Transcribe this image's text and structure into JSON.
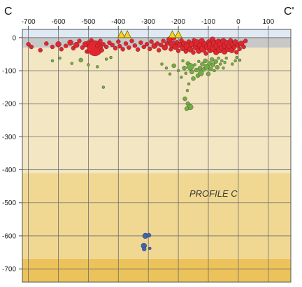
{
  "chart_data": {
    "type": "scatter",
    "section_label_left": "C",
    "section_label_right": "C'",
    "annotation": "PROFILE C",
    "xlim": [
      -720,
      175
    ],
    "ylim": [
      -740,
      25
    ],
    "x_ticks": [
      -700,
      -600,
      -500,
      -400,
      -300,
      -200,
      -100,
      0,
      100
    ],
    "x_tick_labels": [
      "-700",
      "-600",
      "-500",
      "-400",
      "-300",
      "-200",
      "-100",
      "0",
      "100"
    ],
    "y_ticks": [
      0,
      -100,
      -200,
      -300,
      -400,
      -500,
      -600,
      -700
    ],
    "y_tick_labels": [
      "0",
      "-100",
      "-200",
      "-300",
      "-400",
      "-500",
      "-600",
      "-700"
    ],
    "grid": true,
    "background_bands": [
      {
        "from": 25,
        "to": 0,
        "color": "#dfe9f4"
      },
      {
        "from": 0,
        "to": -30,
        "color": "#c8c8c8"
      },
      {
        "from": -30,
        "to": -410,
        "color": "#f3e6c3"
      },
      {
        "from": -410,
        "to": -670,
        "color": "#f0d892"
      },
      {
        "from": -670,
        "to": -740,
        "color": "#ecc35a"
      }
    ],
    "colors": {
      "shallow": "#e0262f",
      "intermediate": "#6fae44",
      "deep": "#3c66b4",
      "stations": "#f4d425",
      "grid": "#6e6e6e"
    },
    "stations": {
      "x": [
        -390,
        -370,
        -220,
        -200
      ]
    },
    "series": [
      {
        "key": "shallow",
        "points": [
          [
            -700,
            -20,
            3
          ],
          [
            -690,
            -28,
            3
          ],
          [
            -660,
            -38,
            3
          ],
          [
            -640,
            -18,
            3
          ],
          [
            -620,
            -28,
            3
          ],
          [
            -600,
            -20,
            4
          ],
          [
            -590,
            -35,
            3
          ],
          [
            -575,
            -25,
            3
          ],
          [
            -560,
            -15,
            4
          ],
          [
            -550,
            -32,
            3
          ],
          [
            -540,
            -22,
            4
          ],
          [
            -530,
            -10,
            3
          ],
          [
            -520,
            -30,
            3
          ],
          [
            -510,
            -20,
            4
          ],
          [
            -505,
            -42,
            3
          ],
          [
            -500,
            -15,
            3
          ],
          [
            -495,
            -28,
            4
          ],
          [
            -490,
            -8,
            3
          ],
          [
            -485,
            -35,
            3
          ],
          [
            -480,
            -18,
            3
          ],
          [
            -478,
            -32,
            11
          ],
          [
            -470,
            -25,
            3
          ],
          [
            -460,
            -10,
            3
          ],
          [
            -455,
            -38,
            3
          ],
          [
            -450,
            -20,
            3
          ],
          [
            -440,
            -28,
            3
          ],
          [
            -430,
            -15,
            3
          ],
          [
            -420,
            -22,
            3
          ],
          [
            -410,
            -32,
            3
          ],
          [
            -400,
            -12,
            3
          ],
          [
            -395,
            -26,
            3
          ],
          [
            -385,
            -35,
            3
          ],
          [
            -375,
            -18,
            3
          ],
          [
            -365,
            -30,
            3
          ],
          [
            -355,
            -10,
            3
          ],
          [
            -345,
            -24,
            3
          ],
          [
            -335,
            -36,
            3
          ],
          [
            -325,
            -15,
            3
          ],
          [
            -315,
            -28,
            3
          ],
          [
            -305,
            -20,
            3
          ],
          [
            -295,
            -34,
            3
          ],
          [
            -290,
            -12,
            3
          ],
          [
            -280,
            -25,
            4
          ],
          [
            -270,
            -18,
            3
          ],
          [
            -265,
            -38,
            3
          ],
          [
            -258,
            -22,
            3
          ],
          [
            -250,
            -10,
            3
          ],
          [
            -245,
            -30,
            4
          ],
          [
            -238,
            -18,
            3
          ],
          [
            -230,
            -6,
            4
          ],
          [
            -225,
            -35,
            3
          ],
          [
            -220,
            -20,
            5
          ],
          [
            -215,
            -2,
            3
          ],
          [
            -210,
            -28,
            4
          ],
          [
            -205,
            -14,
            3
          ],
          [
            -200,
            -40,
            3
          ],
          [
            -195,
            -22,
            4
          ],
          [
            -190,
            -8,
            3
          ],
          [
            -185,
            -32,
            4
          ],
          [
            -180,
            -18,
            4
          ],
          [
            -175,
            -42,
            3
          ],
          [
            -170,
            -26,
            5
          ],
          [
            -165,
            -12,
            3
          ],
          [
            -160,
            -36,
            4
          ],
          [
            -155,
            -20,
            4
          ],
          [
            -150,
            -45,
            3
          ],
          [
            -148,
            -8,
            3
          ],
          [
            -142,
            -30,
            4
          ],
          [
            -138,
            -16,
            5
          ],
          [
            -132,
            -40,
            4
          ],
          [
            -128,
            -24,
            4
          ],
          [
            -122,
            -10,
            4
          ],
          [
            -118,
            -34,
            5
          ],
          [
            -112,
            -20,
            4
          ],
          [
            -108,
            -48,
            3
          ],
          [
            -102,
            -28,
            5
          ],
          [
            -98,
            -14,
            4
          ],
          [
            -94,
            -38,
            4
          ],
          [
            -90,
            -24,
            6
          ],
          [
            -86,
            -6,
            4
          ],
          [
            -82,
            -32,
            5
          ],
          [
            -78,
            -18,
            5
          ],
          [
            -74,
            -44,
            4
          ],
          [
            -70,
            -26,
            5
          ],
          [
            -66,
            -12,
            4
          ],
          [
            -62,
            -36,
            5
          ],
          [
            -58,
            -20,
            5
          ],
          [
            -54,
            -30,
            4
          ],
          [
            -50,
            -10,
            4
          ],
          [
            -46,
            -42,
            4
          ],
          [
            -42,
            -24,
            5
          ],
          [
            -38,
            -16,
            4
          ],
          [
            -34,
            -34,
            4
          ],
          [
            -30,
            -26,
            4
          ],
          [
            -26,
            -8,
            3
          ],
          [
            -22,
            -38,
            4
          ],
          [
            -18,
            -20,
            4
          ],
          [
            -14,
            -30,
            3
          ],
          [
            -10,
            -14,
            4
          ],
          [
            -6,
            -44,
            3
          ],
          [
            -2,
            -24,
            3
          ],
          [
            4,
            -34,
            3
          ],
          [
            10,
            -18,
            4
          ],
          [
            18,
            -28,
            3
          ],
          [
            24,
            -10,
            3
          ]
        ]
      },
      {
        "key": "intermediate",
        "points": [
          [
            -620,
            -70,
            2
          ],
          [
            -595,
            -62,
            2
          ],
          [
            -555,
            -78,
            2
          ],
          [
            -525,
            -68,
            3
          ],
          [
            -500,
            -82,
            2
          ],
          [
            -470,
            -88,
            2
          ],
          [
            -440,
            -65,
            2
          ],
          [
            -425,
            -60,
            2
          ],
          [
            -450,
            -150,
            2
          ],
          [
            -255,
            -80,
            2
          ],
          [
            -240,
            -92,
            2
          ],
          [
            -228,
            -110,
            2
          ],
          [
            -215,
            -85,
            3
          ],
          [
            -200,
            -100,
            2
          ],
          [
            -190,
            -120,
            2
          ],
          [
            -185,
            -70,
            2
          ],
          [
            -180,
            -92,
            3
          ],
          [
            -175,
            -108,
            2
          ],
          [
            -168,
            -78,
            3
          ],
          [
            -165,
            -140,
            2
          ],
          [
            -160,
            -88,
            5
          ],
          [
            -155,
            -104,
            3
          ],
          [
            -150,
            -124,
            3
          ],
          [
            -145,
            -82,
            2
          ],
          [
            -140,
            -98,
            3
          ],
          [
            -135,
            -115,
            3
          ],
          [
            -132,
            -72,
            2
          ],
          [
            -128,
            -92,
            3
          ],
          [
            -125,
            -108,
            4
          ],
          [
            -120,
            -80,
            3
          ],
          [
            -115,
            -96,
            3
          ],
          [
            -110,
            -70,
            3
          ],
          [
            -105,
            -88,
            4
          ],
          [
            -100,
            -110,
            3
          ],
          [
            -96,
            -78,
            3
          ],
          [
            -92,
            -94,
            3
          ],
          [
            -88,
            -66,
            3
          ],
          [
            -84,
            -82,
            3
          ],
          [
            -80,
            -100,
            2
          ],
          [
            -75,
            -72,
            3
          ],
          [
            -70,
            -90,
            3
          ],
          [
            -66,
            -62,
            2
          ],
          [
            -60,
            -80,
            2
          ],
          [
            -55,
            -70,
            2
          ],
          [
            -50,
            -92,
            2
          ],
          [
            -45,
            -75,
            2
          ],
          [
            -40,
            -62,
            2
          ],
          [
            -170,
            -160,
            2
          ],
          [
            -178,
            -185,
            3
          ],
          [
            -168,
            -200,
            3
          ],
          [
            -160,
            -210,
            4
          ],
          [
            -172,
            -215,
            3
          ],
          [
            -20,
            -80,
            2
          ],
          [
            -10,
            -70,
            2
          ],
          [
            -5,
            -60,
            2
          ],
          [
            5,
            -68,
            2
          ]
        ]
      },
      {
        "key": "deep",
        "points": [
          [
            -310,
            -600,
            4
          ],
          [
            -298,
            -598,
            3
          ],
          [
            -315,
            -630,
            4
          ],
          [
            -314,
            -640,
            3
          ],
          [
            -295,
            -638,
            2
          ]
        ]
      }
    ]
  }
}
